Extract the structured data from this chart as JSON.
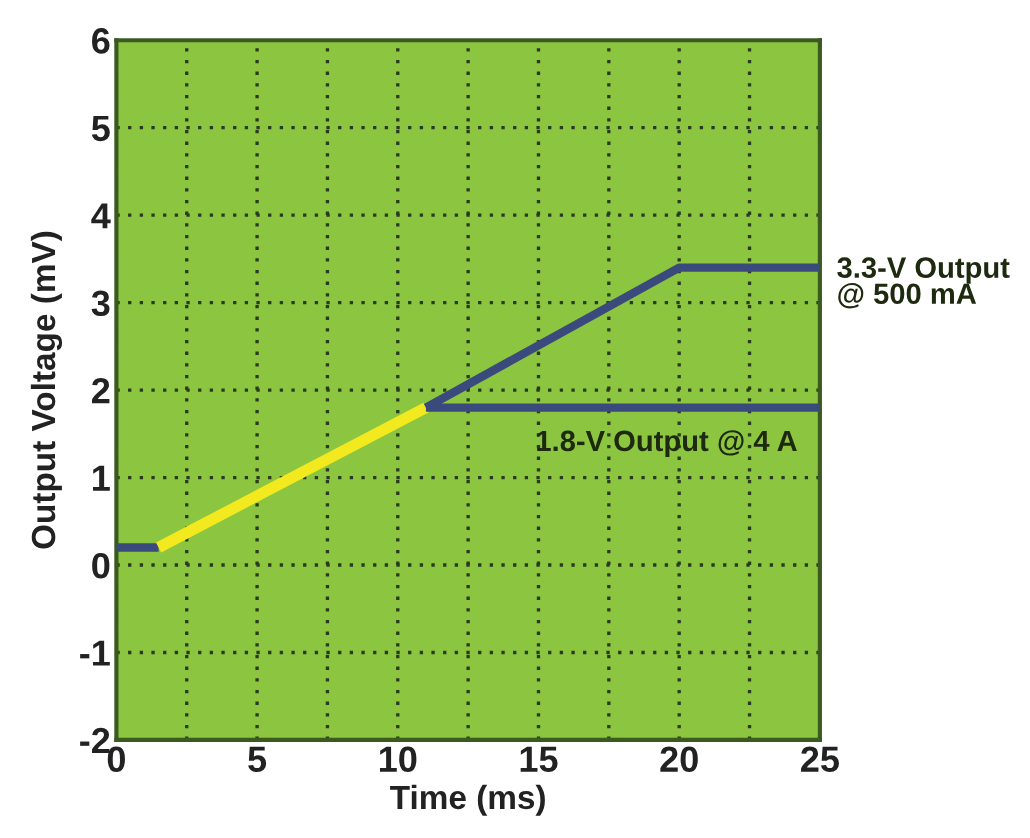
{
  "chart_data": {
    "type": "line",
    "xlabel": "Time (ms)",
    "ylabel": "Output Voltage (mV)",
    "xlim": [
      0,
      25
    ],
    "ylim": [
      -2,
      6
    ],
    "xticks": [
      0,
      {
        "value": 2.5,
        "label": null
      },
      5,
      {
        "value": 7.5,
        "label": null
      },
      10,
      {
        "value": 12.5,
        "label": null
      },
      15,
      {
        "value": 17.5,
        "label": null
      },
      20,
      {
        "value": 22.5,
        "label": null
      },
      25
    ],
    "yticks": [
      -2,
      -1,
      0,
      1,
      2,
      3,
      4,
      5,
      6
    ],
    "grid": true,
    "line_style": "solid",
    "marker": "none",
    "series": [
      {
        "color": "#3a4a7c",
        "x": [
          0,
          1.5
        ],
        "values": [
          0.2,
          0.2
        ]
      },
      {
        "color": "#f2ea1e",
        "x": [
          1.5,
          11
        ],
        "values": [
          0.2,
          1.8
        ]
      },
      {
        "name": "3.3-V Output\n@ 500 mA",
        "color": "#3a4a7c",
        "x": [
          11,
          20,
          25
        ],
        "values": [
          1.8,
          3.4,
          3.4
        ]
      },
      {
        "name": "1.8-V Output @ 4 A",
        "color": "#3a4a7c",
        "x": [
          11,
          25
        ],
        "values": [
          1.8,
          1.8
        ]
      }
    ]
  }
}
